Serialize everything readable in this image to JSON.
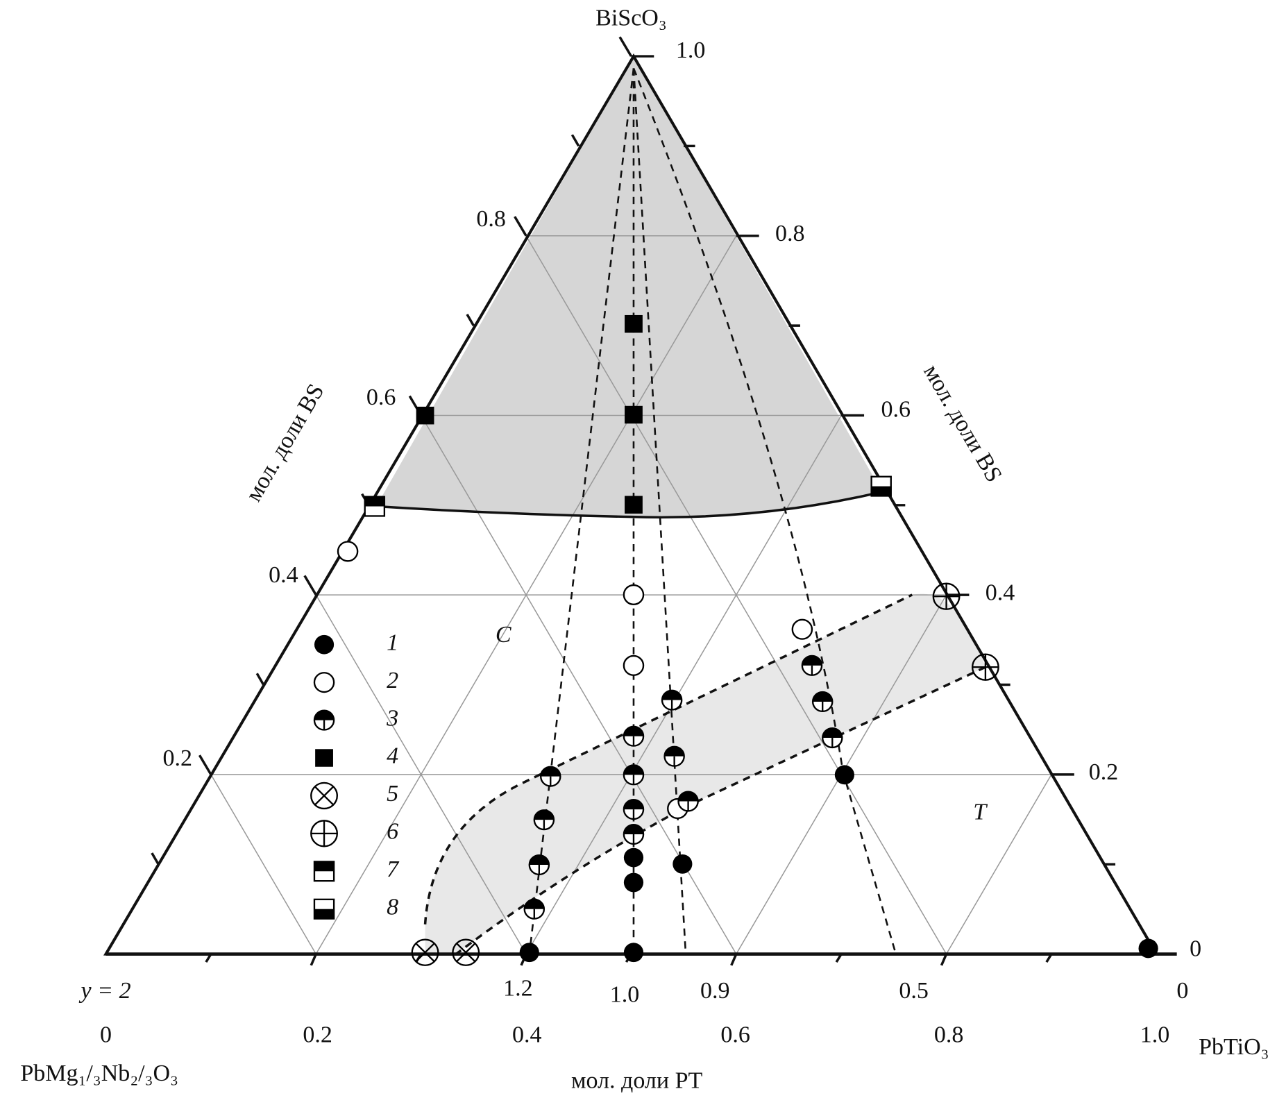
{
  "vertices": {
    "top": "BiScO₃",
    "right": "PbTiO₃",
    "left": "PbMg₁/₃Nb₂/₃O₃"
  },
  "axis_titles": {
    "left": "мол. доли BS",
    "right": "мол. доли BS",
    "bottom": "мол. доли PT"
  },
  "left_ticks": [
    "0.8",
    "0.6",
    "0.4",
    "0.2"
  ],
  "right_ticks": [
    "1.0",
    "0.8",
    "0.6",
    "0.4",
    "0.2",
    "0"
  ],
  "bottom_ticks": [
    "0",
    "0.2",
    "0.4",
    "0.6",
    "0.8",
    "1.0"
  ],
  "y_labels": [
    "y = 2",
    "1.2",
    "1.0",
    "0.9",
    "0.5",
    "0"
  ],
  "phases": [
    "C",
    "T"
  ],
  "legend": [
    "1",
    "2",
    "3",
    "4",
    "5",
    "6",
    "7",
    "8"
  ]
}
